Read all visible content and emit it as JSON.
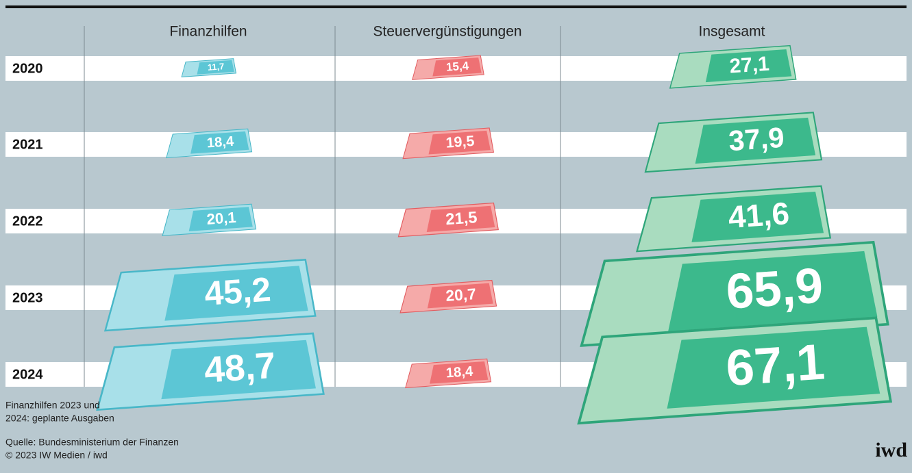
{
  "columns": [
    "Finanzhilfen",
    "Steuervergünstigungen",
    "Insgesamt"
  ],
  "rows": [
    {
      "year": "2020",
      "values": [
        11.7,
        15.4,
        27.1
      ],
      "value_labels": [
        "11,7",
        "15,4",
        "27,1"
      ]
    },
    {
      "year": "2021",
      "values": [
        18.4,
        19.5,
        37.9
      ],
      "value_labels": [
        "18,4",
        "19,5",
        "37,9"
      ]
    },
    {
      "year": "2022",
      "values": [
        20.1,
        21.5,
        41.6
      ],
      "value_labels": [
        "20,1",
        "21,5",
        "41,6"
      ]
    },
    {
      "year": "2023",
      "values": [
        45.2,
        20.7,
        65.9
      ],
      "value_labels": [
        "45,2",
        "20,7",
        "65,9"
      ]
    },
    {
      "year": "2024",
      "values": [
        48.7,
        18.4,
        67.1
      ],
      "value_labels": [
        "48,7",
        "18,4",
        "67,1"
      ]
    }
  ],
  "footnote": [
    "Finanzhilfen 2023 und",
    "2024: geplante Ausgaben"
  ],
  "source": [
    "Quelle: Bundesministerium der Finanzen",
    "© 2023 IW Medien / iwd"
  ],
  "logo": "iwd"
}
